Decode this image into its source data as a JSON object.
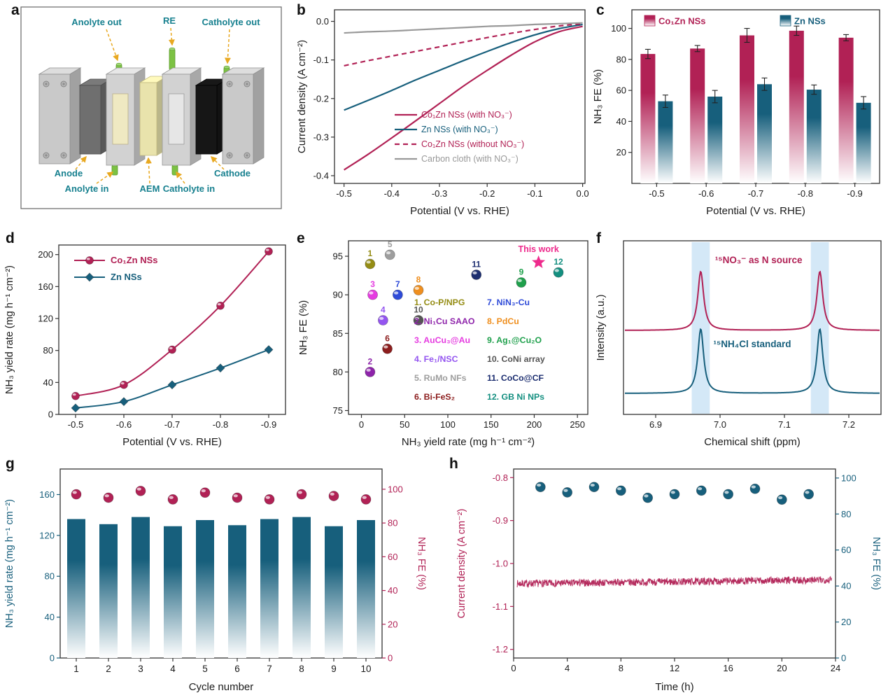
{
  "panel_letters": {
    "a": "a",
    "b": "b",
    "c": "c",
    "d": "d",
    "e": "e",
    "f": "f",
    "g": "g",
    "h": "h"
  },
  "colors": {
    "crimson": "#b12155",
    "teal": "#175f7c",
    "gray": "#999999",
    "band": "#d4e8f7",
    "arrow": "#e8a820",
    "cell_label": "#17808f",
    "star_pink": "#ee2a8c"
  },
  "panel_a": {
    "labels": {
      "anolyte_out": "Anolyte out",
      "re": "RE",
      "catholyte_out": "Catholyte out",
      "anode": "Anode",
      "anolyte_in": "Anolyte in",
      "aem": "AEM",
      "catholyte_in": "Catholyte in",
      "cathode": "Cathode"
    }
  },
  "chart_data": [
    {
      "id": "b",
      "type": "line",
      "xlabel": "Potential (V vs. RHE)",
      "ylabel": "Current density (A cm⁻²)",
      "xlim": [
        -0.52,
        0.005
      ],
      "ylim": [
        -0.42,
        0.03
      ],
      "xticks": [
        -0.5,
        -0.4,
        -0.3,
        -0.2,
        -0.1,
        0.0
      ],
      "xtick_labels": [
        "-0.5",
        "-0.4",
        "-0.3",
        "-0.2",
        "-0.1",
        "0.0"
      ],
      "yticks": [
        0.0,
        -0.1,
        -0.2,
        -0.3,
        -0.4
      ],
      "ytick_labels": [
        "0.0",
        "-0.1",
        "-0.2",
        "-0.3",
        "-0.4"
      ],
      "x": [
        -0.5,
        -0.45,
        -0.4,
        -0.35,
        -0.3,
        -0.25,
        -0.2,
        -0.15,
        -0.1,
        -0.05,
        0.0
      ],
      "series": [
        {
          "name": "Co₁Zn NSs (with NO₃⁻)",
          "color": "crimson",
          "dash": "solid",
          "y": [
            -0.385,
            -0.345,
            -0.302,
            -0.258,
            -0.213,
            -0.168,
            -0.127,
            -0.088,
            -0.053,
            -0.027,
            -0.013
          ]
        },
        {
          "name": "Zn NSs (with NO₃⁻)",
          "color": "teal",
          "dash": "solid",
          "y": [
            -0.23,
            -0.205,
            -0.179,
            -0.152,
            -0.127,
            -0.102,
            -0.078,
            -0.055,
            -0.035,
            -0.019,
            -0.008
          ]
        },
        {
          "name": "Co₁Zn NSs (without NO₃⁻)",
          "color": "crimson",
          "dash": "dash",
          "y": [
            -0.115,
            -0.102,
            -0.09,
            -0.078,
            -0.066,
            -0.054,
            -0.042,
            -0.031,
            -0.021,
            -0.012,
            -0.006
          ]
        },
        {
          "name": "Carbon cloth (with NO₃⁻)",
          "color": "gray",
          "dash": "solid",
          "y": [
            -0.03,
            -0.027,
            -0.025,
            -0.022,
            -0.019,
            -0.016,
            -0.013,
            -0.011,
            -0.008,
            -0.006,
            -0.004
          ]
        }
      ]
    },
    {
      "id": "c",
      "type": "grouped_bar",
      "xlabel": "Potential (V vs. RHE)",
      "ylabel": "NH₃ FE (%)",
      "categories": [
        "-0.5",
        "-0.6",
        "-0.7",
        "-0.8",
        "-0.9"
      ],
      "ylim": [
        0,
        112
      ],
      "yticks": [
        20,
        40,
        60,
        80,
        100
      ],
      "ytick_labels": [
        "20",
        "40",
        "60",
        "80",
        "100"
      ],
      "series": [
        {
          "name": "Co₁Zn NSs",
          "color": "crimson",
          "values": [
            83.5,
            87,
            95.5,
            98.5,
            94
          ],
          "errors": [
            3,
            2,
            4.5,
            3,
            2
          ]
        },
        {
          "name": "Zn NSs",
          "color": "teal",
          "values": [
            53,
            56,
            64,
            60.5,
            52
          ],
          "errors": [
            4,
            4,
            4,
            3,
            4
          ]
        }
      ]
    },
    {
      "id": "d",
      "type": "marker_line",
      "xlabel": "Potential (V vs. RHE)",
      "ylabel": "NH₃ yield rate (mg h⁻¹ cm⁻²)",
      "categories": [
        "-0.5",
        "-0.6",
        "-0.7",
        "-0.8",
        "-0.9"
      ],
      "ylim": [
        0,
        212
      ],
      "yticks": [
        0,
        40,
        80,
        120,
        160,
        200
      ],
      "ytick_labels": [
        "0",
        "40",
        "80",
        "120",
        "160",
        "200"
      ],
      "series": [
        {
          "name": "Co₁Zn NSs",
          "color": "crimson",
          "marker": "circle",
          "values": [
            23,
            37,
            81,
            136,
            204
          ]
        },
        {
          "name": "Zn NSs",
          "color": "teal",
          "marker": "diamond",
          "values": [
            8,
            16,
            37,
            58,
            81
          ]
        }
      ]
    },
    {
      "id": "e",
      "type": "scatter",
      "xlabel": "NH₃ yield rate (mg h⁻¹ cm⁻²)",
      "ylabel": "NH₃ FE (%)",
      "xlim": [
        -15,
        262
      ],
      "xticks": [
        0,
        50,
        100,
        150,
        200,
        250
      ],
      "ylim": [
        74.5,
        97
      ],
      "yticks": [
        75,
        80,
        85,
        90,
        95
      ],
      "points": [
        {
          "n": "1",
          "label": "Co-P/NPG",
          "x": 10,
          "y": 94,
          "color": "#958d15"
        },
        {
          "n": "2",
          "label": "Ni₁Cu SAAO",
          "x": 10,
          "y": 80,
          "color": "#8e24aa"
        },
        {
          "n": "3",
          "label": "AuCu₃@Au",
          "x": 13,
          "y": 90,
          "color": "#e53ce0"
        },
        {
          "n": "4",
          "label": "Fe₁/NSC",
          "x": 25,
          "y": 86.7,
          "color": "#9455f0"
        },
        {
          "n": "5",
          "label": "RuMo NFs",
          "x": 33,
          "y": 95.2,
          "color": "#9e9e9e"
        },
        {
          "n": "6",
          "label": "Bi-FeS₂",
          "x": 30,
          "y": 83,
          "color": "#8c1d1d"
        },
        {
          "n": "7",
          "label": "NiN₃-Cu",
          "x": 42,
          "y": 90,
          "color": "#2f4bd8"
        },
        {
          "n": "8",
          "label": "PdCu",
          "x": 66,
          "y": 90.6,
          "color": "#ef8f1f"
        },
        {
          "n": "9",
          "label": "Ag₁@Cu₂O",
          "x": 185,
          "y": 91.6,
          "color": "#1fa04c"
        },
        {
          "n": "10",
          "label": "CoNi array",
          "x": 66,
          "y": 86.7,
          "color": "#555555"
        },
        {
          "n": "11",
          "label": "CoCo@CF",
          "x": 133,
          "y": 92.6,
          "color": "#1c2e70"
        },
        {
          "n": "12",
          "label": "GB Ni NPs",
          "x": 228,
          "y": 92.9,
          "color": "#148f80"
        }
      ],
      "this_work": {
        "label": "This work",
        "x": 205,
        "y": 94.2
      }
    },
    {
      "id": "f",
      "type": "nmr",
      "xlabel": "Chemical shift (ppm)",
      "ylabel": "Intensity (a.u.)",
      "xlim": [
        6.85,
        7.25
      ],
      "xticks": [
        6.9,
        7.0,
        7.1,
        7.2
      ],
      "xtick_labels": [
        "6.9",
        "7.0",
        "7.1",
        "7.2"
      ],
      "peaks": [
        6.97,
        7.155
      ],
      "traces": [
        {
          "name": "¹⁵NO₃⁻ as N source",
          "color": "crimson"
        },
        {
          "name": "¹⁵NH₄Cl standard",
          "color": "teal"
        }
      ]
    },
    {
      "id": "g",
      "type": "dual_bar_dot",
      "xlabel": "Cycle number",
      "ylabel_left": "NH₃ yield rate (mg h⁻¹ cm⁻²)",
      "ylabel_right": "NH₃ FE (%)",
      "categories": [
        "1",
        "2",
        "3",
        "4",
        "5",
        "6",
        "7",
        "8",
        "9",
        "10"
      ],
      "ylim_left": [
        0,
        185
      ],
      "yticks_left": [
        0,
        40,
        80,
        120,
        160
      ],
      "ylim_right": [
        0,
        112
      ],
      "yticks_right": [
        0,
        20,
        40,
        60,
        80,
        100
      ],
      "bars": {
        "name": "NH₃ yield rate",
        "color": "teal",
        "values": [
          136,
          131,
          138,
          129,
          135,
          130,
          136,
          138,
          129,
          135
        ]
      },
      "dots": {
        "name": "NH₃ FE",
        "color": "crimson",
        "values": [
          97,
          95,
          99,
          94,
          98,
          95,
          94,
          97,
          96,
          94
        ]
      }
    },
    {
      "id": "h",
      "type": "stability",
      "xlabel": "Time (h)",
      "ylabel_left": "Current density (A cm⁻²)",
      "ylabel_right": "NH₃ FE (%)",
      "xlim": [
        0,
        24
      ],
      "xticks": [
        0,
        4,
        8,
        12,
        16,
        20,
        24
      ],
      "ylim_left": [
        -1.22,
        -0.78
      ],
      "yticks_left": [
        -1.2,
        -1.1,
        -1.0,
        -0.9,
        -0.8
      ],
      "ytick_labels_left": [
        "-1.2",
        "-1.1",
        "-1.0",
        "-0.9",
        "-0.8"
      ],
      "ylim_right": [
        0,
        105
      ],
      "yticks_right": [
        0,
        20,
        40,
        60,
        80,
        100
      ],
      "current": {
        "baseline": -1.047,
        "noise": 0.0085,
        "drift": 0.009
      },
      "fe_dots": {
        "x": [
          2,
          4,
          6,
          8,
          10,
          12,
          14,
          16,
          18,
          20,
          22
        ],
        "y": [
          95,
          92,
          95,
          93,
          89,
          91,
          93,
          91,
          94,
          88,
          91
        ]
      }
    }
  ]
}
